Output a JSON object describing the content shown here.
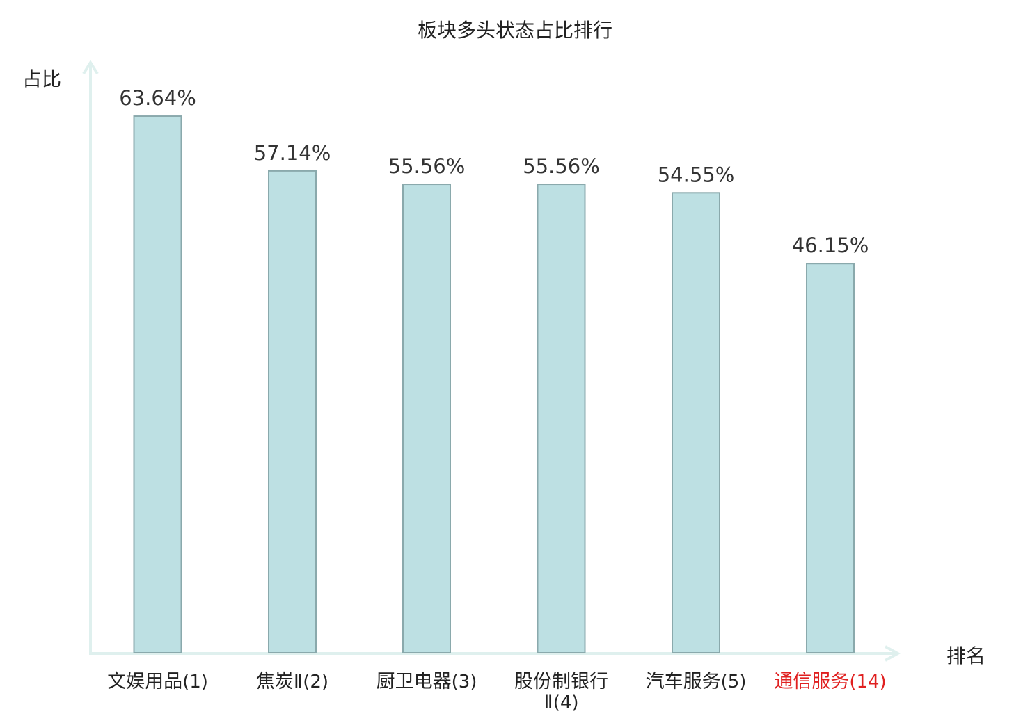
{
  "chart_data": {
    "type": "bar",
    "title": "板块多头状态占比排行",
    "ylabel": "占比",
    "xlabel": "排名",
    "ylim": [
      0,
      70
    ],
    "grid": false,
    "categories": [
      {
        "name": "文娱用品",
        "rank": "(1)",
        "highlight": false
      },
      {
        "name": "焦炭Ⅱ",
        "rank": "(2)",
        "highlight": false
      },
      {
        "name": "厨卫电器",
        "rank": "(3)",
        "highlight": false
      },
      {
        "name": "股份制银行Ⅱ",
        "rank": "(4)",
        "highlight": false
      },
      {
        "name": "汽车服务",
        "rank": "(5)",
        "highlight": false
      },
      {
        "name": "通信服务",
        "rank": "(14)",
        "highlight": true
      }
    ],
    "values": [
      63.64,
      57.14,
      55.56,
      55.56,
      54.55,
      46.15
    ],
    "value_labels": [
      "63.64%",
      "57.14%",
      "55.56%",
      "55.56%",
      "54.55%",
      "46.15%"
    ],
    "colors": {
      "bar_fill": "#bde0e3",
      "bar_stroke": "#8aa9ac",
      "axis": "#dff0ee",
      "highlight_text": "#e02020",
      "text": "#222222"
    }
  }
}
